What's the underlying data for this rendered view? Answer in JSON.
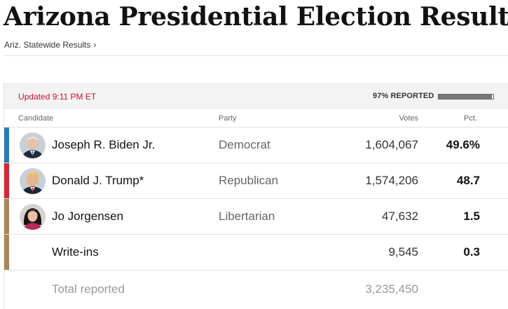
{
  "page": {
    "title": "Arizona Presidential Election Results",
    "breadcrumb": "Ariz. Statewide Results",
    "breadcrumb_chevron": "›"
  },
  "status": {
    "updated": "Updated 9:11 PM ET",
    "reported_label": "97% REPORTED",
    "reported_fraction": 0.97
  },
  "columns": {
    "candidate": "Candidate",
    "party": "Party",
    "votes": "Votes",
    "pct": "Pct."
  },
  "candidates": [
    {
      "name": "Joseph R. Biden Jr.",
      "party": "Democrat",
      "votes": "1,604,067",
      "pct": "49.6%",
      "color": "#2a7bb8",
      "avatar": "biden-photo"
    },
    {
      "name": "Donald J. Trump*",
      "party": "Republican",
      "votes": "1,574,206",
      "pct": "48.7",
      "color": "#d0283a",
      "avatar": "trump-photo"
    },
    {
      "name": "Jo Jorgensen",
      "party": "Libertarian",
      "votes": "47,632",
      "pct": "1.5",
      "color": "#a8875a",
      "avatar": "jorgensen-photo"
    },
    {
      "name": "Write-ins",
      "party": "",
      "votes": "9,545",
      "pct": "0.3",
      "color": "#a8875a",
      "avatar": ""
    }
  ],
  "totals": {
    "label": "Total reported",
    "votes": "3,235,450"
  }
}
